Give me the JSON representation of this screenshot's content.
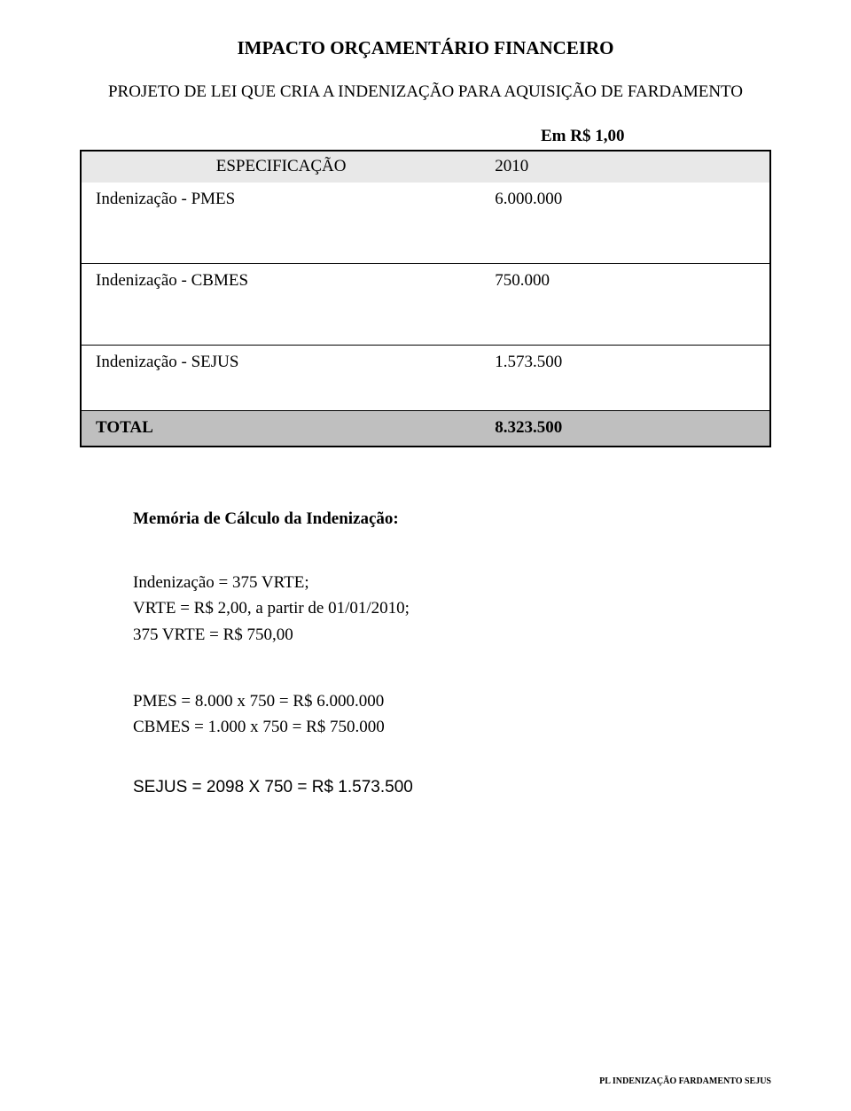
{
  "title": "IMPACTO ORÇAMENTÁRIO FINANCEIRO",
  "subtitle": "PROJETO DE LEI QUE CRIA A INDENIZAÇÃO PARA AQUISIÇÃO DE FARDAMENTO",
  "currency_note": "Em R$ 1,00",
  "table": {
    "header": {
      "spec": "ESPECIFICAÇÃO",
      "year": "2010"
    },
    "rows": [
      {
        "label": "Indenização - PMES",
        "value": "6.000.000"
      },
      {
        "label": "Indenização - CBMES",
        "value": "750.000"
      },
      {
        "label": "Indenização - SEJUS",
        "value": "1.573.500"
      }
    ],
    "total": {
      "label": "TOTAL",
      "value": "8.323.500"
    },
    "header_bg": "#e8e8e8",
    "total_bg": "#bfbfbf",
    "border_color": "#000000"
  },
  "memo": {
    "heading": "Memória de Cálculo da Indenização:",
    "lines": [
      "Indenização = 375 VRTE;",
      "VRTE = R$ 2,00, a partir de 01/01/2010;",
      "375 VRTE = R$ 750,00"
    ],
    "calc_lines": [
      "PMES = 8.000 x 750 = R$ 6.000.000",
      "CBMES = 1.000 x 750 = R$ 750.000"
    ],
    "sejus_line": "SEJUS = 2098 X 750 = R$ 1.573.500"
  },
  "footer": "PL INDENIZAÇÃO FARDAMENTO SEJUS"
}
